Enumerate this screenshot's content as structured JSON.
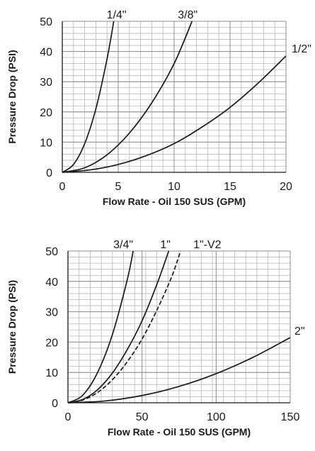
{
  "chart_data": [
    {
      "type": "line",
      "xlabel": "Flow Rate - Oil 150 SUS (GPM)",
      "ylabel": "Pressure Drop (PSI)",
      "xlim": [
        0,
        20
      ],
      "ylim": [
        0,
        50
      ],
      "x_ticks": [
        "0",
        "5",
        "10",
        "15",
        "20"
      ],
      "y_ticks": [
        "0",
        "10",
        "20",
        "30",
        "40",
        "50"
      ],
      "grid": true,
      "series": [
        {
          "name": "1/4\"",
          "style": "solid",
          "x": [
            0,
            1,
            2,
            3,
            4,
            4.6
          ],
          "y": [
            0,
            2.6,
            9.5,
            21,
            37.5,
            50
          ]
        },
        {
          "name": "3/8\"",
          "style": "solid",
          "x": [
            0,
            2,
            4,
            6,
            8,
            10,
            11.6
          ],
          "y": [
            0,
            1.5,
            5.8,
            13,
            23,
            36,
            50
          ]
        },
        {
          "name": "1/2\"",
          "style": "solid",
          "x": [
            0,
            2.5,
            5,
            7.5,
            10,
            12.5,
            15,
            17.5,
            20
          ],
          "y": [
            0,
            0.8,
            2.6,
            5.5,
            9.5,
            15,
            21.5,
            29.5,
            38.5
          ]
        }
      ]
    },
    {
      "type": "line",
      "xlabel": "Flow Rate - Oil 150 SUS (GPM)",
      "ylabel": "Pressure Drop (PSI)",
      "xlim": [
        0,
        150
      ],
      "ylim": [
        0,
        50
      ],
      "x_ticks": [
        "0",
        "50",
        "100",
        "150"
      ],
      "y_ticks": [
        "0",
        "10",
        "20",
        "30",
        "40",
        "50"
      ],
      "grid": true,
      "series": [
        {
          "name": "3/4\"",
          "style": "solid",
          "x": [
            0,
            10,
            20,
            30,
            40,
            44
          ],
          "y": [
            0,
            2.5,
            10,
            22.5,
            40.5,
            50
          ]
        },
        {
          "name": "1\"",
          "style": "solid",
          "x": [
            0,
            10,
            20,
            30,
            40,
            50,
            60,
            68
          ],
          "y": [
            0,
            1.1,
            4.3,
            9.8,
            17.5,
            27,
            39,
            50
          ]
        },
        {
          "name": "1\"-V2",
          "style": "dashed",
          "x": [
            0,
            10,
            20,
            30,
            40,
            50,
            60,
            70,
            76
          ],
          "y": [
            0,
            0.9,
            3.4,
            7.6,
            13.5,
            21,
            30.5,
            41.5,
            50
          ]
        },
        {
          "name": "2\"",
          "style": "solid",
          "x": [
            0,
            25,
            50,
            75,
            100,
            125,
            150
          ],
          "y": [
            0,
            0.6,
            2.4,
            5.4,
            9.6,
            15,
            21.5
          ]
        }
      ]
    }
  ]
}
